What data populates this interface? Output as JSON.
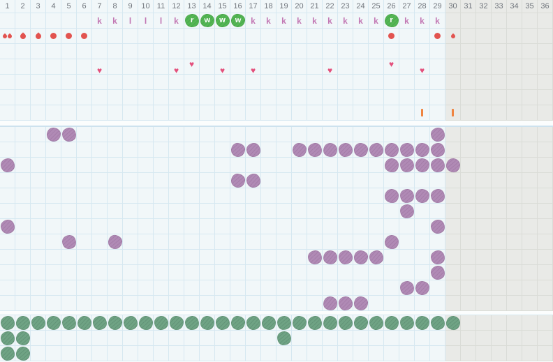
{
  "colors": {
    "background": "#f1f7f9",
    "grid_line": "#d6e8f1",
    "grey_bg": "#e9eae7",
    "grey_line": "#dadcd7",
    "gap_band": "#fbfdfd",
    "day_number": "#70757c",
    "fluid_letter": "#c277b3",
    "fluid_blob_green": "#54b654",
    "bleeding_red": "#e2534f",
    "heart_pink": "#e4517d",
    "tick_orange": "#ef8440",
    "purple_blob": "#b08ab5",
    "bottom_green": "#6fa384"
  },
  "grey_from_col": 30,
  "day_numbers": [
    "1",
    "2",
    "3",
    "4",
    "5",
    "6",
    "7",
    "8",
    "9",
    "10",
    "11",
    "12",
    "13",
    "14",
    "15",
    "16",
    "17",
    "18",
    "19",
    "20",
    "21",
    "22",
    "23",
    "24",
    "25",
    "26",
    "27",
    "28",
    "29",
    "30",
    "31",
    "32",
    "33",
    "34",
    "35",
    "36"
  ],
  "top_section": {
    "fluid_marks": [
      {
        "col": 7,
        "letter": "k",
        "variant": "plain"
      },
      {
        "col": 8,
        "letter": "k",
        "variant": "plain"
      },
      {
        "col": 9,
        "letter": "l",
        "variant": "plain"
      },
      {
        "col": 10,
        "letter": "l",
        "variant": "plain"
      },
      {
        "col": 11,
        "letter": "l",
        "variant": "plain"
      },
      {
        "col": 12,
        "letter": "k",
        "variant": "plain"
      },
      {
        "col": 13,
        "letter": "r",
        "variant": "blob"
      },
      {
        "col": 14,
        "letter": "w",
        "variant": "blob"
      },
      {
        "col": 15,
        "letter": "w",
        "variant": "blob"
      },
      {
        "col": 16,
        "letter": "w",
        "variant": "blob"
      },
      {
        "col": 17,
        "letter": "k",
        "variant": "plain"
      },
      {
        "col": 18,
        "letter": "k",
        "variant": "plain"
      },
      {
        "col": 19,
        "letter": "k",
        "variant": "plain"
      },
      {
        "col": 20,
        "letter": "k",
        "variant": "plain"
      },
      {
        "col": 21,
        "letter": "k",
        "variant": "plain"
      },
      {
        "col": 22,
        "letter": "k",
        "variant": "plain"
      },
      {
        "col": 23,
        "letter": "k",
        "variant": "plain"
      },
      {
        "col": 24,
        "letter": "k",
        "variant": "plain"
      },
      {
        "col": 25,
        "letter": "k",
        "variant": "plain"
      },
      {
        "col": 26,
        "letter": "r",
        "variant": "blob"
      },
      {
        "col": 27,
        "letter": "k",
        "variant": "plain"
      },
      {
        "col": 28,
        "letter": "k",
        "variant": "plain"
      },
      {
        "col": 29,
        "letter": "k",
        "variant": "plain"
      }
    ],
    "bleeding_marks": [
      {
        "col": 1,
        "type": "drop-double"
      },
      {
        "col": 2,
        "type": "drop"
      },
      {
        "col": 3,
        "type": "drop"
      },
      {
        "col": 4,
        "type": "dot"
      },
      {
        "col": 5,
        "type": "dot"
      },
      {
        "col": 6,
        "type": "dot"
      },
      {
        "col": 26,
        "type": "dot"
      },
      {
        "col": 29,
        "type": "dot"
      },
      {
        "col": 30,
        "type": "drop-small"
      }
    ],
    "heart_marks": [
      {
        "col": 7,
        "raised": false
      },
      {
        "col": 12,
        "raised": false
      },
      {
        "col": 13,
        "raised": true
      },
      {
        "col": 15,
        "raised": false
      },
      {
        "col": 17,
        "raised": false
      },
      {
        "col": 22,
        "raised": false
      },
      {
        "col": 26,
        "raised": true
      },
      {
        "col": 28,
        "raised": false
      }
    ],
    "tick_marks": [
      {
        "col": 28
      },
      {
        "col": 30
      }
    ]
  },
  "middle_section": {
    "rows": [
      [
        4,
        5,
        29
      ],
      [
        16,
        17,
        20,
        21,
        22,
        23,
        24,
        25,
        26,
        27,
        28,
        29
      ],
      [
        1,
        26,
        27,
        28,
        29,
        30
      ],
      [
        16,
        17
      ],
      [
        26,
        27,
        28,
        29
      ],
      [
        27
      ],
      [
        1,
        29
      ],
      [
        5,
        8,
        26
      ],
      [
        21,
        22,
        23,
        24,
        25,
        29
      ],
      [
        29
      ],
      [
        27,
        28
      ],
      [
        22,
        23,
        24
      ]
    ]
  },
  "bottom_section": {
    "rows": [
      [
        1,
        2,
        3,
        4,
        5,
        6,
        7,
        8,
        9,
        10,
        11,
        12,
        13,
        14,
        15,
        16,
        17,
        18,
        19,
        20,
        21,
        22,
        23,
        24,
        25,
        26,
        27,
        28,
        29,
        30
      ],
      [
        1,
        2,
        19
      ],
      [
        1,
        2
      ]
    ]
  }
}
